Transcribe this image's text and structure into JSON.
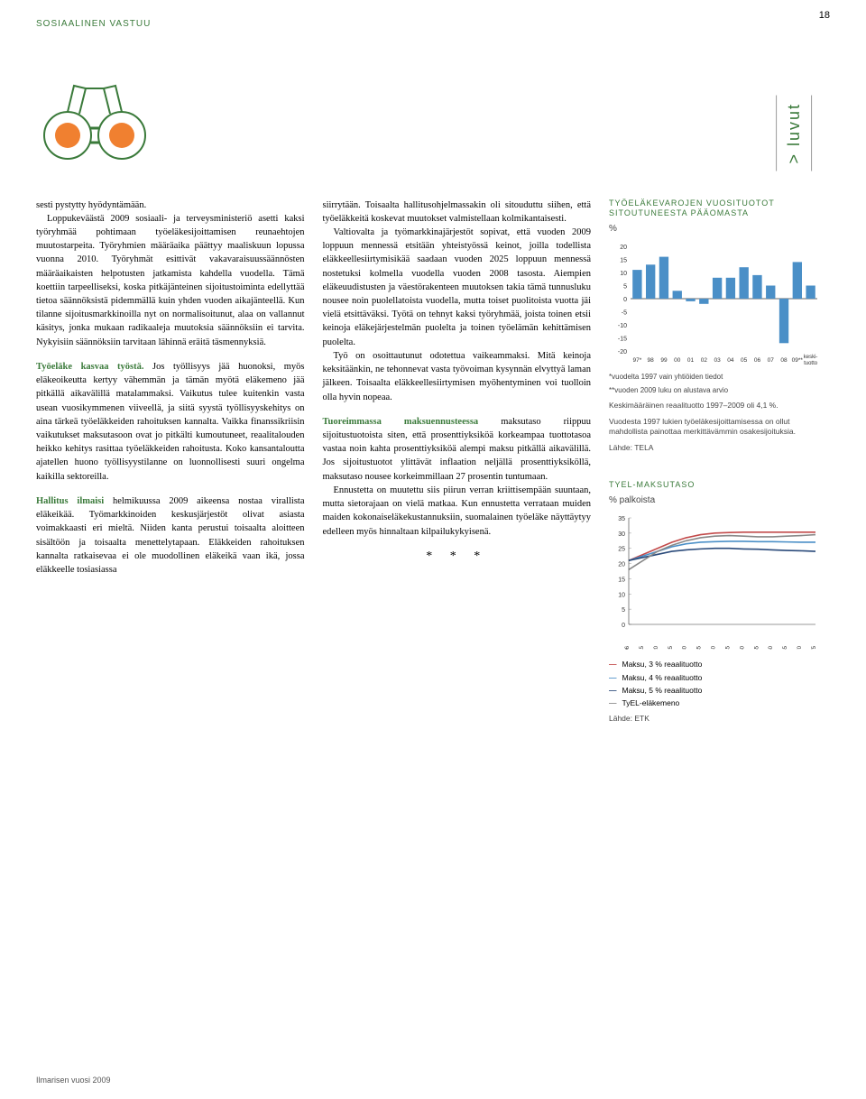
{
  "header": {
    "section": "SOSIAALINEN VASTUU",
    "page": "18",
    "tab": "> luvut"
  },
  "column1": {
    "p1": "sesti pystytty hyödyntämään.",
    "p2": "Loppukeväästä 2009 sosiaali- ja terveysministeriö asetti kaksi työryhmää pohtimaan työeläkesijoittamisen reunaehtojen muutostarpeita. Työryhmien määräaika päättyy maaliskuun lopussa vuonna 2010. Työryhmät esittivät vakavaraisuussäännösten määräaikaisten helpotusten jatkamista kahdella vuodella. Tämä koettiin tarpeelliseksi, koska pitkäjänteinen sijoitustoiminta edellyttää tietoa säännöksistä pidemmällä kuin yhden vuoden aikajänteellä. Kun tilanne sijoitusmarkkinoilla nyt on normalisoitunut, alaa on vallannut käsitys, jonka mukaan radikaaleja muutoksia säännöksiin ei tarvita. Nykyisiin säännöksiin tarvitaan lähinnä eräitä täsmennyksiä.",
    "h1": "Työeläke kasvaa työstä.",
    "p3": " Jos työllisyys jää huonoksi, myös eläkeoikeutta kertyy vähemmän ja tämän myötä eläkemeno jää pitkällä aikavälillä matalammaksi. Vaikutus tulee kuitenkin vasta usean vuosikymmenen viiveellä, ja siitä syystä työllisyyskehitys on aina tärkeä työeläkkeiden rahoituksen kannalta. Vaikka finanssikriisin vaikutukset maksutasoon ovat jo pitkälti kumoutuneet, reaalitalouden heikko kehitys rasittaa työeläkkeiden rahoitusta. Koko kansantaloutta ajatellen huono työllisyystilanne on luonnollisesti suuri ongelma kaikilla sektoreilla.",
    "h2": "Hallitus ilmaisi",
    "p4": " helmikuussa 2009 aikeensa nostaa virallista eläkeikää. Työmarkkinoiden keskusjärjestöt olivat asiasta voimakkaasti eri mieltä. Niiden kanta perustui toisaalta aloitteen sisältöön ja toisaalta menettelytapaan. Eläkkeiden rahoituksen kannalta ratkaisevaa ei ole muodollinen eläkeikä vaan ikä, jossa eläkkeelle tosiasiassa"
  },
  "column2": {
    "p1": "siirrytään. Toisaalta hallitusohjelmassakin oli sitouduttu siihen, että työeläkkeitä koskevat muutokset valmistellaan kolmikantaisesti.",
    "p2": "Valtiovalta ja työmarkkinajärjestöt sopivat, että vuoden 2009 loppuun mennessä etsitään yhteistyössä keinot, joilla todellista eläkkeellesiirtymisikää saadaan vuoden 2025 loppuun mennessä nostetuksi kolmella vuodella vuoden 2008 tasosta. Aiempien eläkeuudistusten ja väestörakenteen muutoksen takia tämä tunnusluku nousee noin puolellatoista vuodella, mutta toiset puolitoista vuotta jäi vielä etsittäväksi. Työtä on tehnyt kaksi työryhmää, joista toinen etsii keinoja eläkejärjestelmän puolelta ja toinen työelämän kehittämisen puolelta.",
    "p3": "Työ on osoittautunut odotettua vaikeammaksi. Mitä keinoja keksitäänkin, ne tehonnevat vasta työvoiman kysynnän elvyttyä laman jälkeen. Toisaalta eläkkeellesiirtymisen myöhentyminen voi tuolloin olla hyvin nopeaa.",
    "h1": "Tuoreimmassa maksuennusteessa",
    "p4": " maksutaso riippuu sijoitustuotoista siten, että prosenttiyksiköä korkeampaa tuottotasoa vastaa noin kahta prosenttiyksiköä alempi maksu pitkällä aikavälillä. Jos sijoitustuotot ylittävät inflaation neljällä prosenttiyksiköllä, maksutaso nousee korkeimmillaan 27 prosentin tuntumaan.",
    "p5": "Ennustetta on muutettu siis piirun verran kriittisempään suuntaan, mutta sietorajaan on vielä matkaa. Kun ennustetta verrataan muiden maiden kokonaiseläkekustannuksiin, suomalainen työeläke näyttäytyy edelleen myös hinnaltaan kilpailukykyisenä.",
    "stars": "* * *"
  },
  "chart1": {
    "title": "TYÖELÄKEVAROJEN VUOSITUOTOT SITOUTUNEESTA PÄÄOMASTA",
    "unit": "%",
    "ylim": [
      -20,
      20
    ],
    "ytick_step": 5,
    "categories": [
      "97*",
      "98",
      "99",
      "00",
      "01",
      "02",
      "03",
      "04",
      "05",
      "06",
      "07",
      "08",
      "09**",
      "keski-tuotto"
    ],
    "values": [
      11,
      13,
      16,
      3,
      -1,
      -2,
      8,
      8,
      12,
      9,
      5,
      -17,
      14,
      5
    ],
    "bar_color": "#4a8fc7",
    "axis_color": "#333",
    "note1": "*vuodelta 1997 vain yhtiöiden tiedot",
    "note2": "**vuoden 2009 luku on alustava arvio",
    "desc1": "Keskimääräinen reaalituotto 1997–2009 oli 4,1 %.",
    "desc2": "Vuodesta 1997 lukien työeläkesijoittamisessa on ollut mahdollista painottaa merkittävämmin osakesijoituksia.",
    "source": "Lähde: TELA"
  },
  "chart2": {
    "title": "TYEL-MAKSUTASO",
    "unit": "% palkoista",
    "ylim": [
      0,
      35
    ],
    "ytick_step": 5,
    "x_labels": [
      "2006",
      "2015",
      "2020",
      "2025",
      "2030",
      "2035",
      "2040",
      "2045",
      "2050",
      "2055",
      "2060",
      "2065",
      "2070",
      "2075"
    ],
    "series": {
      "maksu3": {
        "color": "#c24a4a",
        "label": "Maksu, 3 % reaalituotto",
        "values": [
          21,
          23,
          25,
          27,
          28.5,
          29.5,
          30,
          30.2,
          30.3,
          30.3,
          30.3,
          30.3,
          30.3,
          30.3
        ]
      },
      "maksu4": {
        "color": "#4a8fc7",
        "label": "Maksu, 4 % reaalituotto",
        "values": [
          21,
          22.5,
          24,
          25.5,
          26.5,
          27,
          27.2,
          27.3,
          27.3,
          27.2,
          27.2,
          27.1,
          27,
          27
        ]
      },
      "maksu5": {
        "color": "#2a4a7a",
        "label": "Maksu, 5 % reaalituotto",
        "values": [
          21,
          22,
          23,
          24,
          24.5,
          24.8,
          25,
          25,
          24.8,
          24.7,
          24.5,
          24.3,
          24.2,
          24
        ]
      },
      "tyel": {
        "color": "#888888",
        "label": "TyEL-eläkemeno",
        "values": [
          18,
          21,
          24,
          26,
          27.5,
          28.5,
          29,
          29.2,
          29,
          28.8,
          28.8,
          29,
          29.2,
          29.5
        ]
      }
    },
    "legend": [
      {
        "key": "maksu3",
        "label": "Maksu, 3 % reaalituotto"
      },
      {
        "key": "maksu4",
        "label": "Maksu, 4 % reaalituotto"
      },
      {
        "key": "maksu5",
        "label": "Maksu, 5 % reaalituotto"
      },
      {
        "key": "tyel",
        "label": "TyEL-eläkemeno"
      }
    ],
    "source": "Lähde: ETK"
  },
  "footer": "Ilmarisen vuosi 2009"
}
